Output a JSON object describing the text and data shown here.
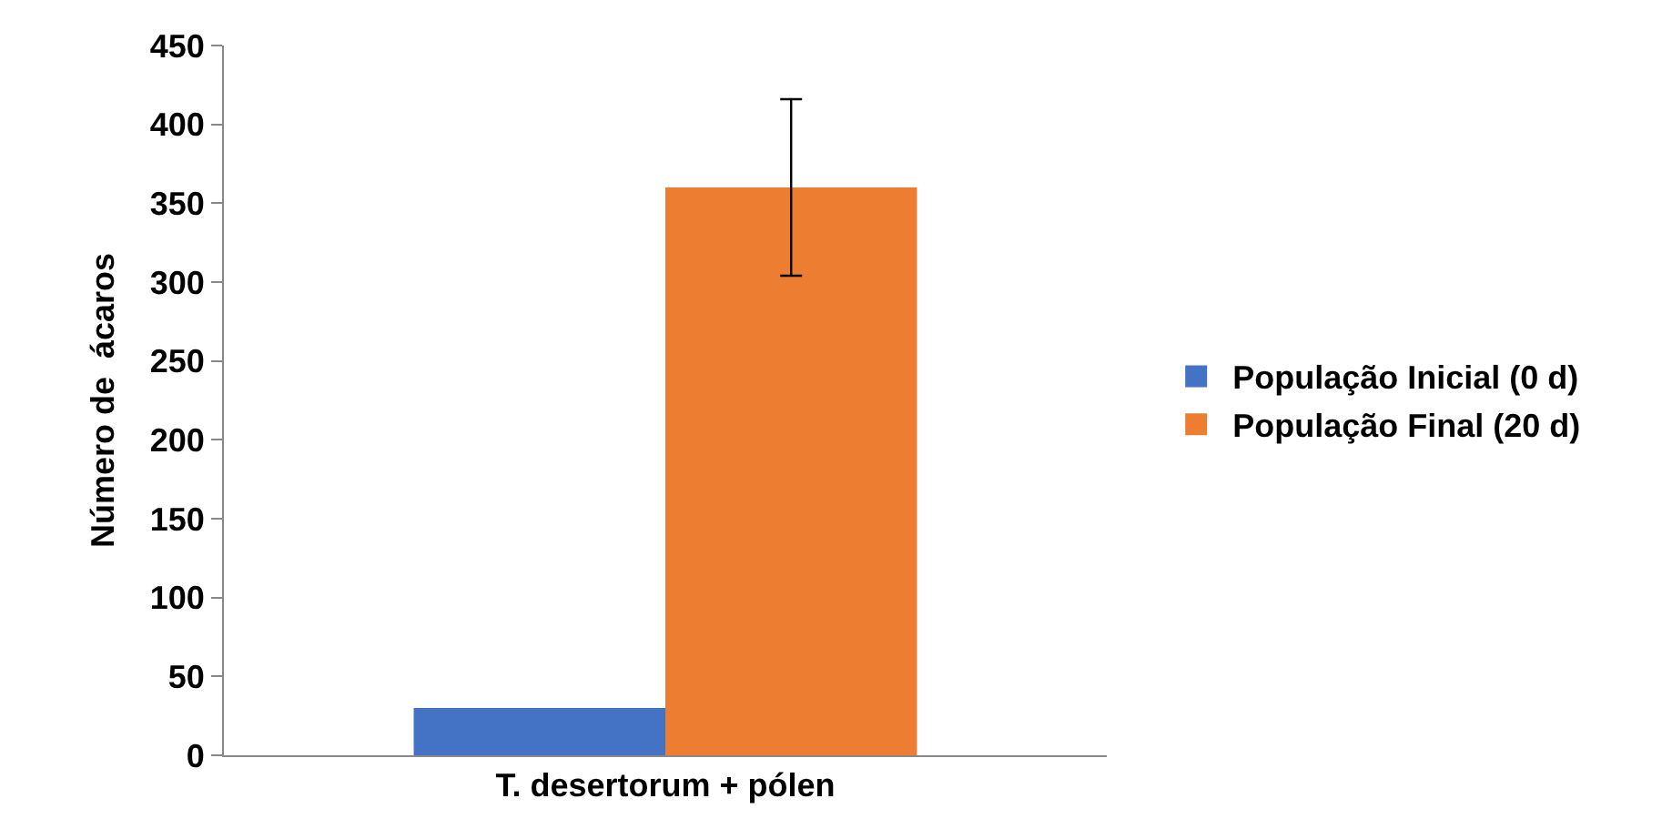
{
  "chart_data": {
    "type": "bar",
    "ylabel": "Número de  ácaros",
    "categories": [
      "T. desertorum + pólen"
    ],
    "series": [
      {
        "name": "População Inicial (0 d)",
        "color": "#4472c4",
        "values": [
          30
        ]
      },
      {
        "name": "População Final (20 d)",
        "color": "#ed7d31",
        "values": [
          360
        ],
        "errors": [
          56
        ]
      }
    ],
    "ylim": [
      0,
      450
    ],
    "yticks": [
      0,
      50,
      100,
      150,
      200,
      250,
      300,
      350,
      400,
      450
    ],
    "grid": false,
    "legend": "right"
  }
}
